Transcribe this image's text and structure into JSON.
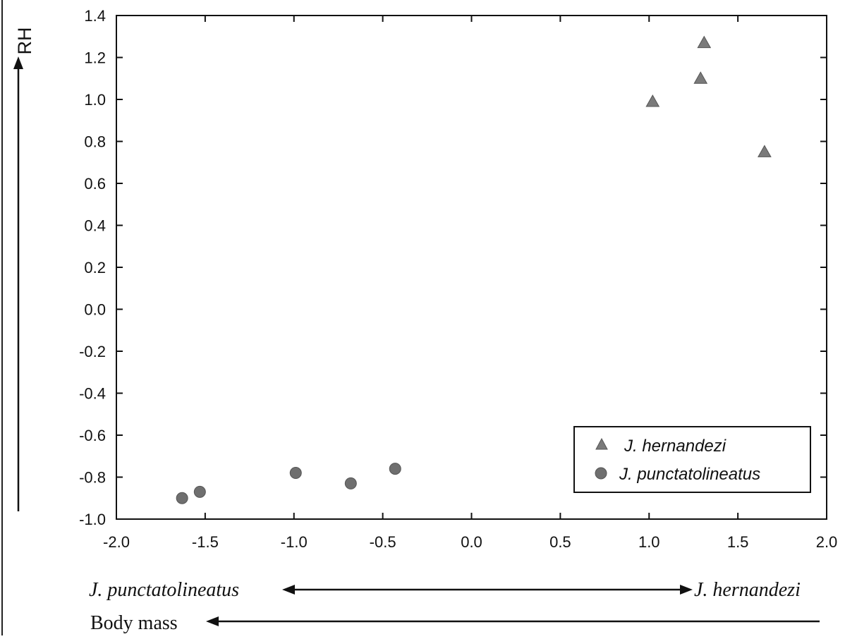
{
  "chart_data": {
    "type": "scatter",
    "ylabel": "RH",
    "xlim": [
      -2.0,
      2.0
    ],
    "ylim": [
      -1.0,
      1.4
    ],
    "x_ticks": [
      "-2.0",
      "-1.5",
      "-1.0",
      "-0.5",
      "0.0",
      "0.5",
      "1.0",
      "1.5",
      "2.0"
    ],
    "y_ticks": [
      "1.4",
      "1.2",
      "1.0",
      "0.8",
      "0.6",
      "0.4",
      "0.2",
      "0.0",
      "-0.2",
      "-0.4",
      "-0.6",
      "-0.8",
      "-1.0"
    ],
    "grid": false,
    "legend_position": "bottom-right",
    "series": [
      {
        "name": "J. hernandezi",
        "marker": "triangle",
        "color": "#7a7a7a",
        "points": [
          {
            "x": 1.02,
            "y": 0.99
          },
          {
            "x": 1.29,
            "y": 1.1
          },
          {
            "x": 1.31,
            "y": 1.27
          },
          {
            "x": 1.65,
            "y": 0.75
          }
        ]
      },
      {
        "name": "J. punctatolineatus",
        "marker": "circle",
        "color": "#6f6f6f",
        "points": [
          {
            "x": -1.63,
            "y": -0.9
          },
          {
            "x": -1.53,
            "y": -0.87
          },
          {
            "x": -0.99,
            "y": -0.78
          },
          {
            "x": -0.68,
            "y": -0.83
          },
          {
            "x": -0.43,
            "y": -0.76
          }
        ]
      }
    ],
    "annotations": {
      "species_left": "J. punctatolineatus",
      "species_right": "J. hernandezi",
      "body_mass": "Body mass"
    }
  }
}
